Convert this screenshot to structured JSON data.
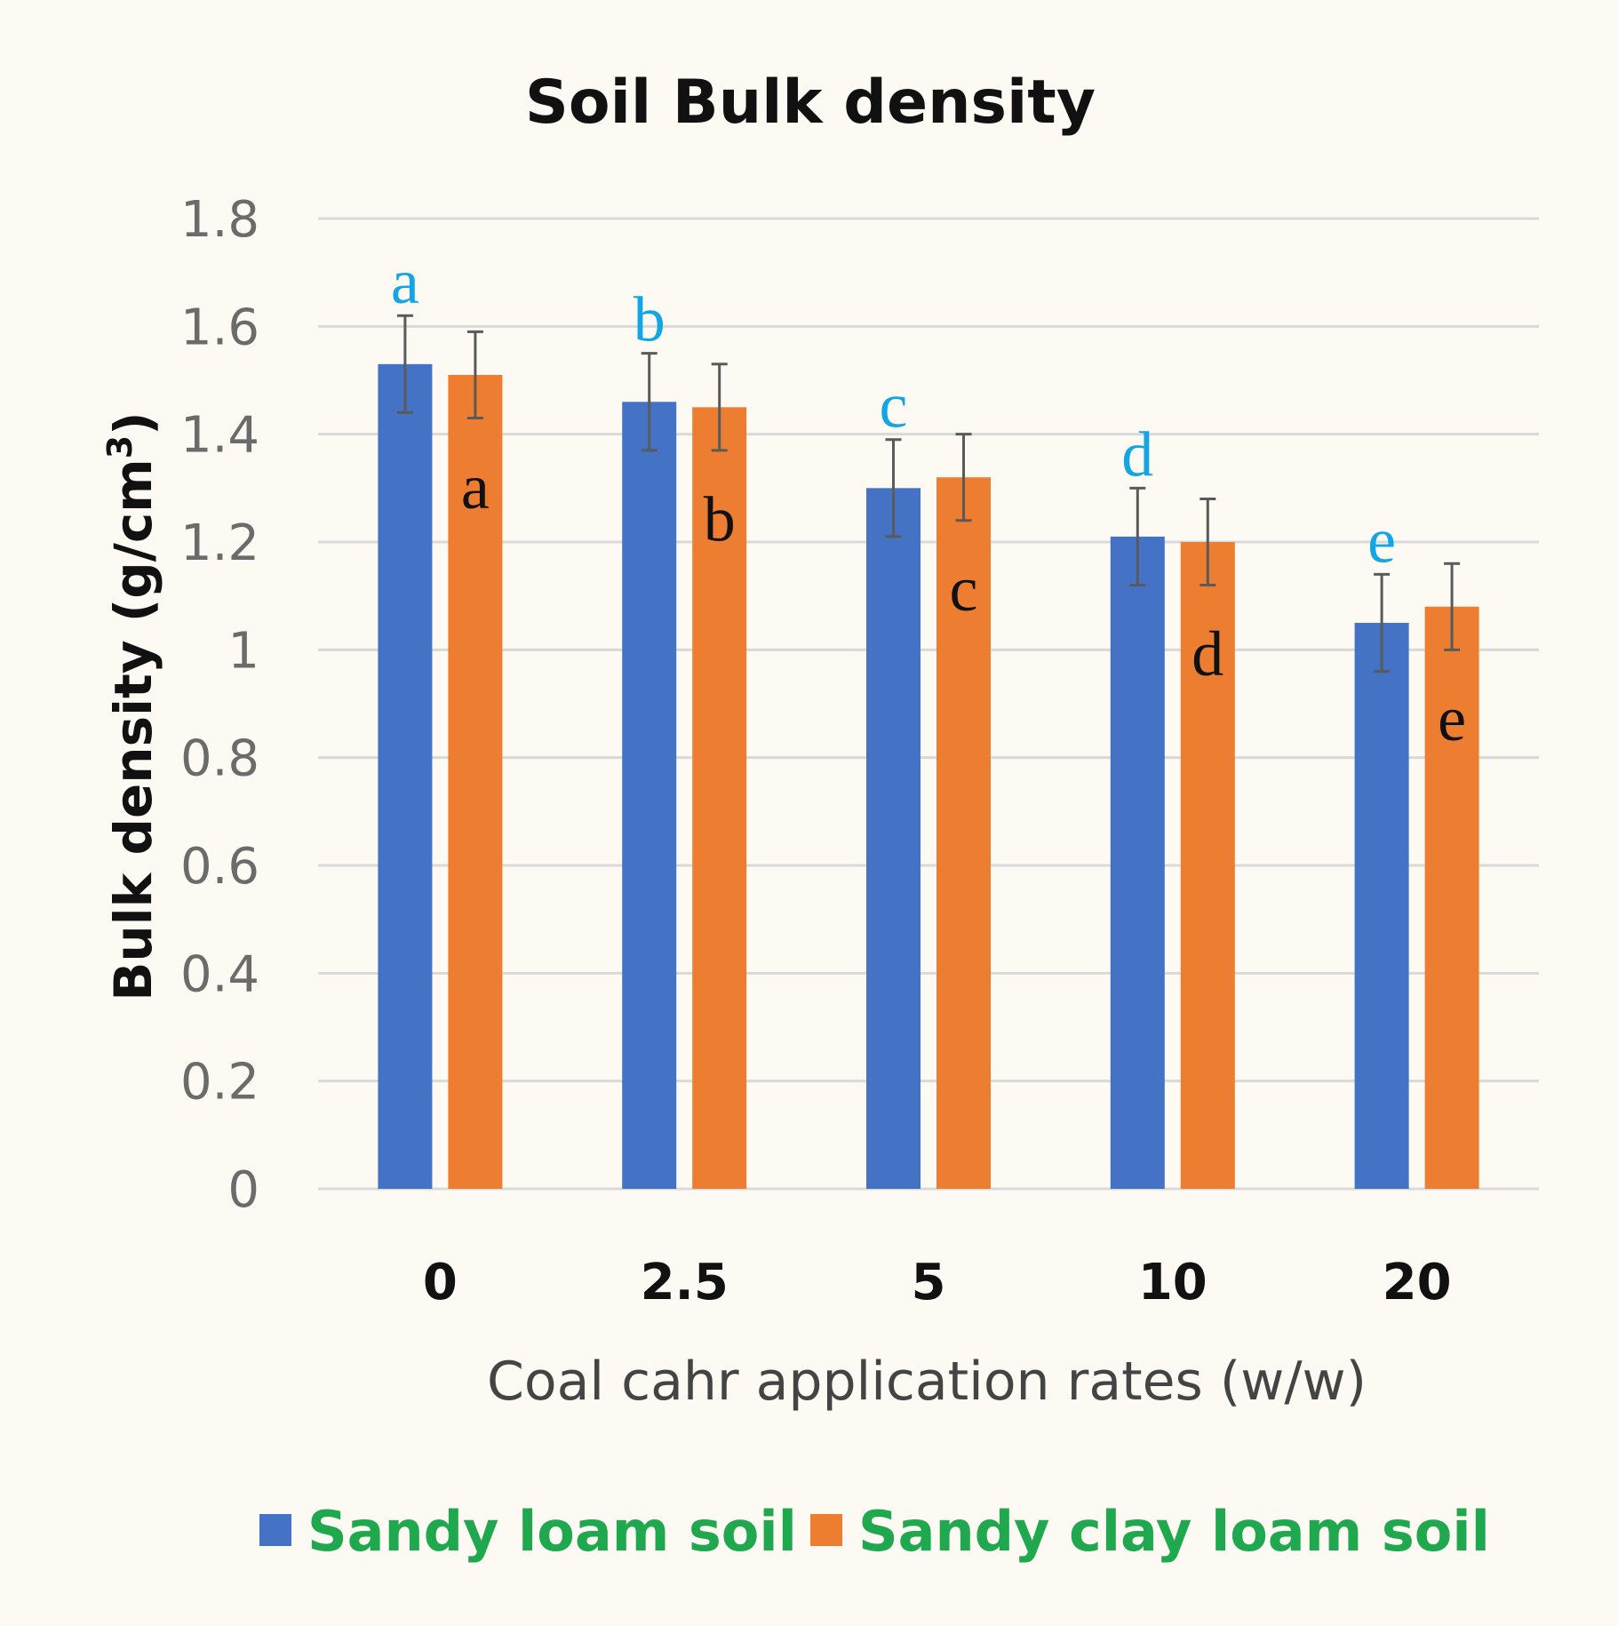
{
  "chart_data": {
    "type": "bar",
    "title": "Soil Bulk density",
    "xlabel": "Coal cahr application rates (w/w)",
    "ylabel": "Bulk density (g/cm",
    "ylabel_sup": "3",
    "ylabel_close": ")",
    "ylim": [
      0,
      1.8
    ],
    "yticks": [
      "0",
      "0.2",
      "0.4",
      "0.6",
      "0.8",
      "1",
      "1.2",
      "1.4",
      "1.6",
      "1.8"
    ],
    "categories": [
      "0",
      "2.5",
      "5",
      "10",
      "20"
    ],
    "grid": true,
    "legend_position": "bottom",
    "series": [
      {
        "name": "Sandy loam soil",
        "color": "#4472c4",
        "values": [
          1.53,
          1.46,
          1.3,
          1.21,
          1.05
        ],
        "errors": [
          0.09,
          0.09,
          0.09,
          0.09,
          0.09
        ],
        "significance": [
          "a",
          "b",
          "c",
          "d",
          "e"
        ],
        "significance_color": "#13a6e6",
        "significance_position": "above"
      },
      {
        "name": "Sandy clay loam soil",
        "color": "#ed7d31",
        "values": [
          1.51,
          1.45,
          1.32,
          1.2,
          1.08
        ],
        "errors": [
          0.08,
          0.08,
          0.08,
          0.08,
          0.08
        ],
        "significance": [
          "a",
          "b",
          "c",
          "d",
          "e"
        ],
        "significance_color": "#111111",
        "significance_position": "inside"
      }
    ],
    "legend_text_color": "#1fa84d",
    "gridline_color": "#d9d9d9",
    "errorbar_color": "#5a5a5a"
  }
}
